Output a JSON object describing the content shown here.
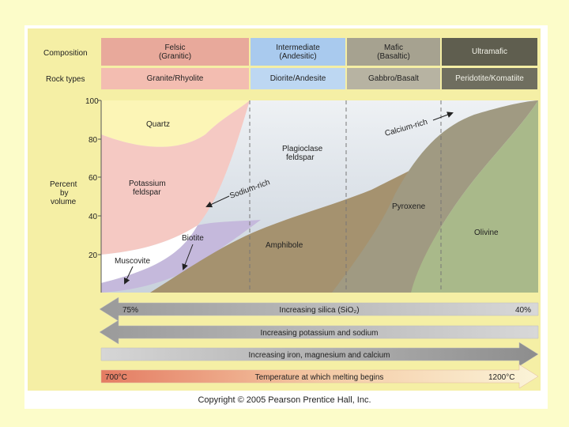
{
  "header": {
    "composition_label": "Composition",
    "rock_types_label": "Rock types",
    "columns": [
      {
        "name": "Felsic",
        "sub": "(Granitic)",
        "rock": "Granite/Rhyolite",
        "color": "#e8a99b",
        "rock_color": "#f3bdb1"
      },
      {
        "name": "Intermediate",
        "sub": "(Andesitic)",
        "rock": "Diorite/Andesite",
        "color": "#a9caee",
        "rock_color": "#bdd7f2"
      },
      {
        "name": "Mafic",
        "sub": "(Basaltic)",
        "rock": "Gabbro/Basalt",
        "color": "#a6a290",
        "rock_color": "#b7b3a2"
      },
      {
        "name": "Ultramafic",
        "sub": "",
        "rock": "Peridotite/Komatiite",
        "color": "#5f5e4f",
        "rock_color": "#6f6e5f"
      }
    ]
  },
  "chart": {
    "y_axis_label": [
      "Percent",
      "by",
      "volume"
    ],
    "y_ticks": [
      "100",
      "80",
      "60",
      "40",
      "20"
    ],
    "minerals": {
      "quartz": "Quartz",
      "potassium_feldspar": [
        "Potassium",
        "feldspar"
      ],
      "plagioclase": [
        "Plagioclase",
        "feldspar"
      ],
      "biotite": "Biotite",
      "muscovite": "Muscovite",
      "amphibole": "Amphibole",
      "pyroxene": "Pyroxene",
      "olivine": "Olivine"
    },
    "annotations": {
      "calcium_rich": "Calcium-rich",
      "sodium_rich": "Sodium-rich"
    },
    "colors": {
      "quartz": "#fcf5b6",
      "potassium_feldspar": "#f5c9c3",
      "plagioclase": "#d9dfe6",
      "biotite": "#c5b9dc",
      "muscovite": "#ffffff",
      "amphibole": "#a5926f",
      "pyroxene": "#a09a82",
      "olivine": "#a9b98a"
    }
  },
  "arrows": [
    {
      "left_text": "75%",
      "label": "Increasing silica (SiO₂)",
      "right_text": "40%"
    },
    {
      "label": "Increasing potassium and sodium"
    },
    {
      "label": "Increasing iron, magnesium and calcium"
    },
    {
      "left_text": "700°C",
      "label": "Temperature at which melting begins",
      "right_text": "1200°C"
    }
  ],
  "copyright": "Copyright © 2005 Pearson Prentice Hall, Inc."
}
